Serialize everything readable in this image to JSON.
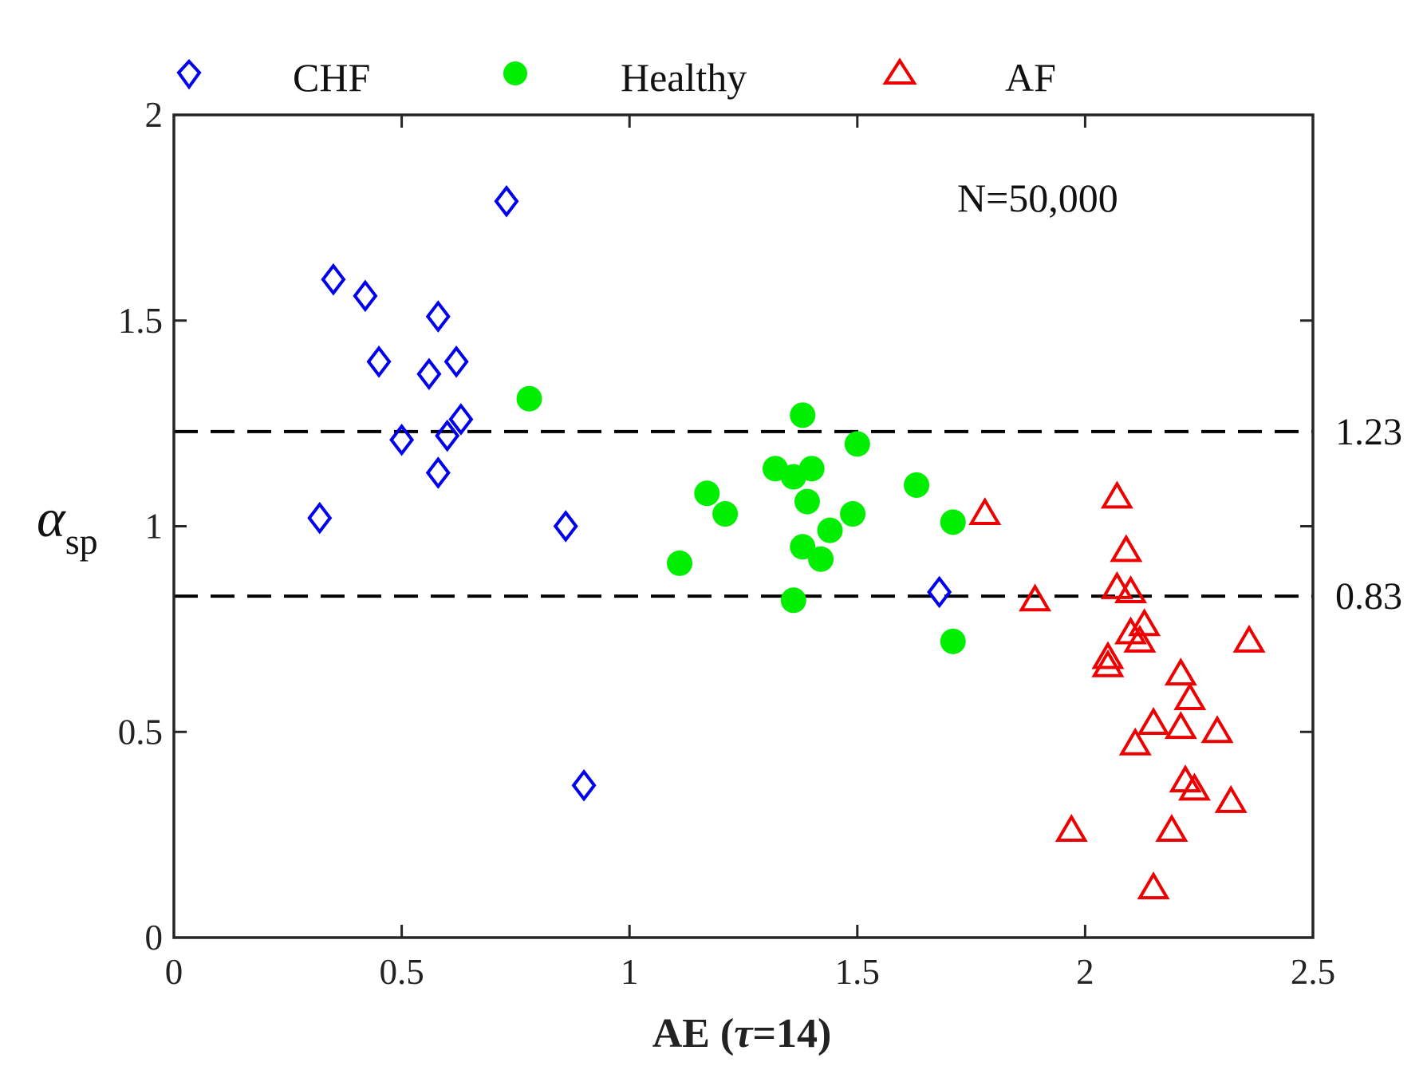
{
  "chart_data": {
    "type": "scatter",
    "title": "",
    "xlabel": "AE (τ=14)",
    "ylabel": "αsp",
    "xlim": [
      0,
      2.5
    ],
    "ylim": [
      0,
      2
    ],
    "xticks": [
      0,
      0.5,
      1,
      1.5,
      2,
      2.5
    ],
    "yticks": [
      0,
      0.5,
      1,
      1.5,
      2
    ],
    "xtick_labels": [
      "0",
      "0.5",
      "1",
      "1.5",
      "2",
      "2.5"
    ],
    "ytick_labels": [
      "0",
      "0.5",
      "1",
      "1.5",
      "2"
    ],
    "grid": false,
    "legend_position": "top",
    "annotation": "N=50,000",
    "reference_lines": [
      {
        "y": 1.23,
        "label": "1.23",
        "style": "dashed",
        "color": "#000000"
      },
      {
        "y": 0.83,
        "label": "0.83",
        "style": "dashed",
        "color": "#000000"
      }
    ],
    "series": [
      {
        "name": "CHF",
        "marker": "diamond",
        "color": "#0000ee",
        "points": [
          [
            0.35,
            1.6
          ],
          [
            0.42,
            1.56
          ],
          [
            0.45,
            1.4
          ],
          [
            0.58,
            1.51
          ],
          [
            0.56,
            1.37
          ],
          [
            0.62,
            1.4
          ],
          [
            0.73,
            1.79
          ],
          [
            0.5,
            1.21
          ],
          [
            0.6,
            1.22
          ],
          [
            0.63,
            1.26
          ],
          [
            0.58,
            1.13
          ],
          [
            0.32,
            1.02
          ],
          [
            0.86,
            1.0
          ],
          [
            0.9,
            0.37
          ],
          [
            1.68,
            0.84
          ]
        ]
      },
      {
        "name": "Healthy",
        "marker": "circle",
        "color": "#00ee00",
        "points": [
          [
            0.78,
            1.31
          ],
          [
            1.11,
            0.91
          ],
          [
            1.17,
            1.08
          ],
          [
            1.21,
            1.03
          ],
          [
            1.32,
            1.14
          ],
          [
            1.36,
            1.12
          ],
          [
            1.38,
            1.27
          ],
          [
            1.39,
            1.06
          ],
          [
            1.4,
            1.14
          ],
          [
            1.38,
            0.95
          ],
          [
            1.36,
            0.82
          ],
          [
            1.42,
            0.92
          ],
          [
            1.44,
            0.99
          ],
          [
            1.49,
            1.03
          ],
          [
            1.5,
            1.2
          ],
          [
            1.63,
            1.1
          ],
          [
            1.71,
            1.01
          ],
          [
            1.71,
            0.72
          ]
        ]
      },
      {
        "name": "AF",
        "marker": "triangle",
        "color": "#ee0000",
        "points": [
          [
            1.78,
            1.03
          ],
          [
            1.89,
            0.82
          ],
          [
            1.97,
            0.26
          ],
          [
            2.05,
            0.68
          ],
          [
            2.05,
            0.66
          ],
          [
            2.07,
            1.07
          ],
          [
            2.07,
            0.85
          ],
          [
            2.09,
            0.94
          ],
          [
            2.1,
            0.84
          ],
          [
            2.1,
            0.74
          ],
          [
            2.12,
            0.72
          ],
          [
            2.13,
            0.76
          ],
          [
            2.15,
            0.12
          ],
          [
            2.15,
            0.52
          ],
          [
            2.11,
            0.47
          ],
          [
            2.19,
            0.26
          ],
          [
            2.21,
            0.51
          ],
          [
            2.21,
            0.64
          ],
          [
            2.22,
            0.38
          ],
          [
            2.23,
            0.58
          ],
          [
            2.24,
            0.36
          ],
          [
            2.29,
            0.5
          ],
          [
            2.32,
            0.33
          ],
          [
            2.36,
            0.72
          ]
        ]
      }
    ]
  }
}
